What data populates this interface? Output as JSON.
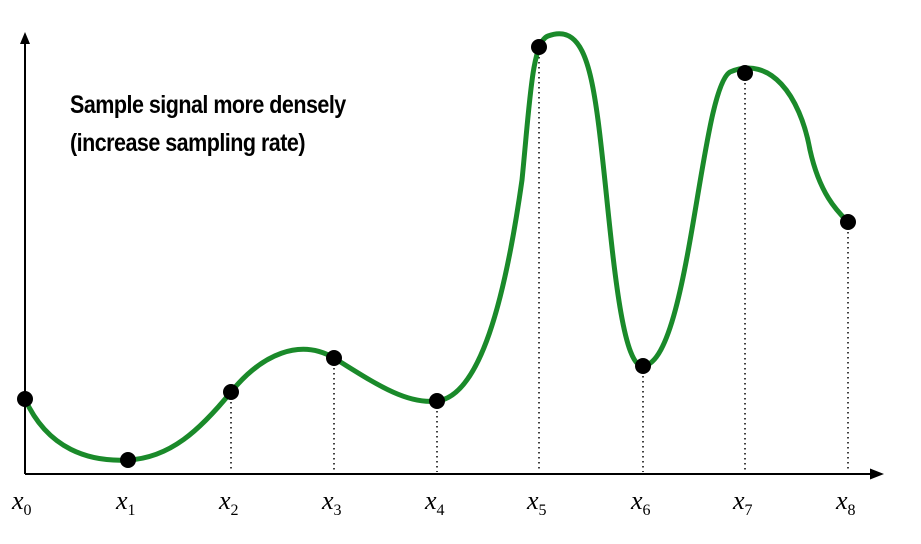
{
  "caption": {
    "line1": "Sample signal more densely",
    "line2": "(increase sampling rate)"
  },
  "colors": {
    "signal": "#1a8a2a",
    "sample_point": "#000000",
    "axis": "#000000"
  },
  "sample_labels": [
    {
      "base": "x",
      "sub": "0"
    },
    {
      "base": "x",
      "sub": "1"
    },
    {
      "base": "x",
      "sub": "2"
    },
    {
      "base": "x",
      "sub": "3"
    },
    {
      "base": "x",
      "sub": "4"
    },
    {
      "base": "x",
      "sub": "5"
    },
    {
      "base": "x",
      "sub": "6"
    },
    {
      "base": "x",
      "sub": "7"
    },
    {
      "base": "x",
      "sub": "8"
    }
  ]
}
